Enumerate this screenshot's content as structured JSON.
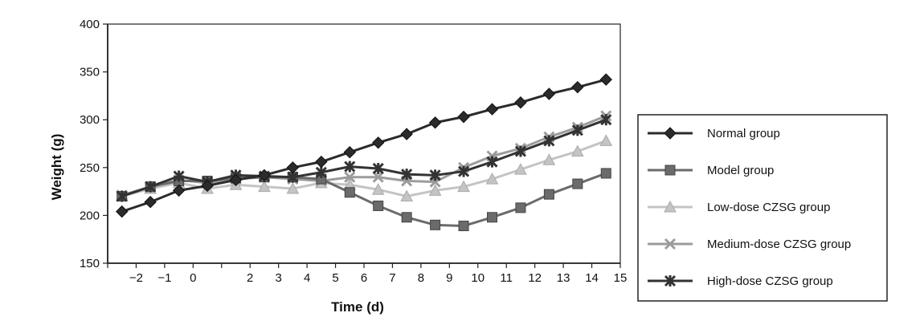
{
  "chart_data": {
    "type": "line",
    "title": "",
    "xlabel": "Time (d)",
    "ylabel": "Weight (g)",
    "xlim": [
      -3,
      15
    ],
    "ylim": [
      150,
      400
    ],
    "x_ticks": [
      -2,
      -1,
      0,
      2,
      3,
      4,
      5,
      6,
      7,
      8,
      9,
      10,
      11,
      12,
      13,
      14,
      15
    ],
    "y_ticks": [
      150,
      200,
      250,
      300,
      350,
      400
    ],
    "grid": false,
    "legend_position": "right",
    "series": [
      {
        "name": "Normal group",
        "marker": "diamond",
        "color": "#2b2b2b",
        "values": [
          204,
          214,
          226,
          231,
          237,
          242,
          250,
          256,
          266,
          276,
          285,
          297,
          303,
          311,
          318,
          327,
          334,
          342
        ]
      },
      {
        "name": "Model group",
        "marker": "square",
        "color": "#6b6b6b",
        "values": [
          220,
          230,
          236,
          236,
          239,
          240,
          240,
          238,
          224,
          210,
          198,
          190,
          189,
          198,
          208,
          222,
          233,
          244
        ]
      },
      {
        "name": "Low-dose CZSG group",
        "marker": "triangle",
        "color": "#c4c4c4",
        "values": [
          220,
          228,
          234,
          228,
          232,
          230,
          228,
          234,
          232,
          227,
          220,
          226,
          230,
          238,
          248,
          258,
          267,
          278
        ]
      },
      {
        "name": "Medium-dose CZSG group",
        "marker": "x",
        "color": "#9c9c9c",
        "values": [
          221,
          230,
          237,
          234,
          238,
          240,
          238,
          236,
          240,
          240,
          236,
          235,
          250,
          262,
          270,
          282,
          292,
          304
        ]
      },
      {
        "name": "High-dose CZSG group",
        "marker": "star",
        "color": "#333333",
        "values": [
          220,
          230,
          241,
          235,
          242,
          241,
          240,
          245,
          251,
          249,
          243,
          242,
          246,
          256,
          267,
          278,
          289,
          300
        ]
      }
    ]
  }
}
